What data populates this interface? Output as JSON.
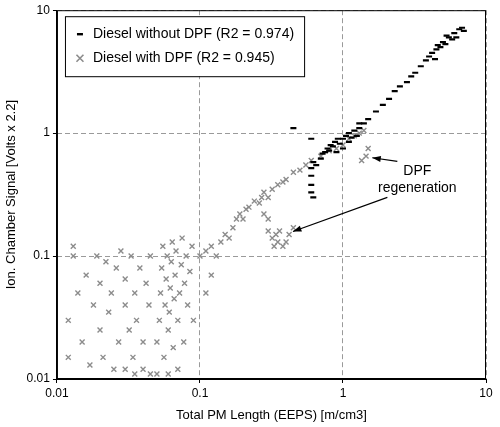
{
  "chart_data": {
    "type": "scatter",
    "x_label": "Total PM Length (EEPS) [m/cm3]",
    "y_label": "Ion. Chamber Signal [Volts x 2.2]",
    "log": true,
    "grid": true,
    "legend": "top-left",
    "xlim": [
      0.01,
      10
    ],
    "ylim": [
      0.01,
      10
    ],
    "xticks": [
      0.01,
      0.1,
      1,
      10
    ],
    "yticks": [
      0.01,
      0.1,
      1,
      10
    ],
    "annotations": [
      {
        "text": "DPF regeneration"
      }
    ],
    "series": [
      {
        "name": "Diesel without DPF (R2 = 0.974)",
        "color": "#000000",
        "marker": "dash",
        "x": [
          0.6,
          0.6,
          0.6,
          0.6,
          0.62,
          0.62,
          0.65,
          0.7,
          0.72,
          0.75,
          0.78,
          0.8,
          0.82,
          0.85,
          0.88,
          0.9,
          0.92,
          0.95,
          1.0,
          1.0,
          1.05,
          1.1,
          1.1,
          1.15,
          1.2,
          1.25,
          1.3,
          1.4,
          1.5,
          1.7,
          1.9,
          2.1,
          2.3,
          2.5,
          2.8,
          3.0,
          3.2,
          3.5,
          3.8,
          4.0,
          4.2,
          4.5,
          4.8,
          5.0,
          5.2,
          5.5,
          5.8,
          6.0,
          6.2,
          6.5,
          6.8,
          7.0,
          4.4,
          4.6,
          5.3,
          1.3,
          0.45,
          0.6
        ],
        "values": [
          0.33,
          0.38,
          0.45,
          0.52,
          0.58,
          0.3,
          0.55,
          0.62,
          0.68,
          0.7,
          0.75,
          0.72,
          0.8,
          0.78,
          0.85,
          0.7,
          0.9,
          0.82,
          0.9,
          0.75,
          0.95,
          0.85,
          1.0,
          0.92,
          1.05,
          0.95,
          1.1,
          1.2,
          1.3,
          1.5,
          1.7,
          1.9,
          2.2,
          2.4,
          2.6,
          2.9,
          3.1,
          3.5,
          3.9,
          4.2,
          4.5,
          4.8,
          5.0,
          5.5,
          5.3,
          6.0,
          5.8,
          6.5,
          6.0,
          7.0,
          7.2,
          6.8,
          4.0,
          5.2,
          6.2,
          1.2,
          1.1,
          0.9
        ]
      },
      {
        "name": "Diesel with DPF (R2 = 0.945)",
        "color": "#8c8c8c",
        "marker": "x",
        "x": [
          0.012,
          0.012,
          0.013,
          0.013,
          0.014,
          0.015,
          0.016,
          0.017,
          0.018,
          0.019,
          0.02,
          0.02,
          0.021,
          0.022,
          0.023,
          0.024,
          0.025,
          0.026,
          0.027,
          0.028,
          0.03,
          0.03,
          0.032,
          0.033,
          0.034,
          0.035,
          0.036,
          0.038,
          0.04,
          0.04,
          0.042,
          0.044,
          0.045,
          0.05,
          0.05,
          0.052,
          0.053,
          0.054,
          0.055,
          0.056,
          0.057,
          0.058,
          0.059,
          0.06,
          0.06,
          0.061,
          0.062,
          0.063,
          0.064,
          0.065,
          0.066,
          0.067,
          0.068,
          0.07,
          0.07,
          0.072,
          0.074,
          0.075,
          0.077,
          0.078,
          0.08,
          0.082,
          0.085,
          0.088,
          0.09,
          0.045,
          0.035,
          0.03,
          0.1,
          0.11,
          0.12,
          0.13,
          0.14,
          0.15,
          0.16,
          0.17,
          0.18,
          0.19,
          0.2,
          0.21,
          0.22,
          0.24,
          0.26,
          0.27,
          0.28,
          0.3,
          0.32,
          0.35,
          0.38,
          0.4,
          0.45,
          0.5,
          0.55,
          0.6,
          0.7,
          0.8,
          0.9,
          1.0,
          1.1,
          1.2,
          1.3,
          1.4,
          1.5,
          1.45,
          1.35,
          0.3,
          0.32,
          0.33,
          0.34,
          0.35,
          0.36,
          0.38,
          0.4,
          0.42,
          0.45,
          0.3,
          0.28,
          0.12,
          0.11
        ],
        "values": [
          0.015,
          0.03,
          0.12,
          0.1,
          0.05,
          0.02,
          0.07,
          0.013,
          0.04,
          0.1,
          0.025,
          0.06,
          0.015,
          0.09,
          0.035,
          0.05,
          0.012,
          0.08,
          0.02,
          0.11,
          0.04,
          0.065,
          0.025,
          0.1,
          0.015,
          0.05,
          0.03,
          0.08,
          0.02,
          0.012,
          0.06,
          0.04,
          0.1,
          0.011,
          0.02,
          0.03,
          0.05,
          0.08,
          0.12,
          0.015,
          0.04,
          0.065,
          0.1,
          0.011,
          0.025,
          0.035,
          0.055,
          0.09,
          0.13,
          0.018,
          0.045,
          0.07,
          0.11,
          0.012,
          0.03,
          0.05,
          0.085,
          0.14,
          0.02,
          0.06,
          0.1,
          0.04,
          0.075,
          0.12,
          0.03,
          0.011,
          0.011,
          0.012,
          0.1,
          0.11,
          0.12,
          0.1,
          0.13,
          0.15,
          0.14,
          0.17,
          0.2,
          0.22,
          0.2,
          0.24,
          0.25,
          0.28,
          0.27,
          0.3,
          0.33,
          0.3,
          0.35,
          0.38,
          0.4,
          0.42,
          0.48,
          0.5,
          0.55,
          0.6,
          0.65,
          0.72,
          0.75,
          0.8,
          0.9,
          0.95,
          1.0,
          1.05,
          0.75,
          0.65,
          0.6,
          0.16,
          0.14,
          0.12,
          0.15,
          0.13,
          0.16,
          0.12,
          0.13,
          0.15,
          0.17,
          0.2,
          0.22,
          0.07,
          0.05
        ]
      }
    ]
  }
}
